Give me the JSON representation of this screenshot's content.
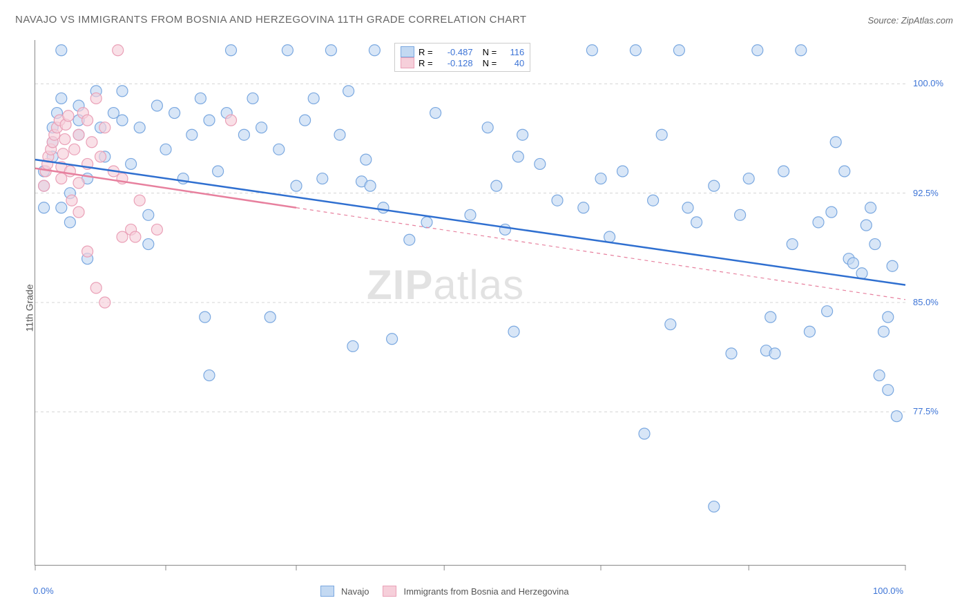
{
  "title": "NAVAJO VS IMMIGRANTS FROM BOSNIA AND HERZEGOVINA 11TH GRADE CORRELATION CHART",
  "source_prefix": "Source: ",
  "source": "ZipAtlas.com",
  "ylabel": "11th Grade",
  "watermark_a": "ZIP",
  "watermark_b": "atlas",
  "chart": {
    "type": "scatter",
    "xlim": [
      0,
      100
    ],
    "ylim": [
      67,
      103
    ],
    "xticks": [
      0,
      15,
      30,
      47,
      65,
      82,
      100
    ],
    "xtick_labels": [
      "0.0%",
      "",
      "",
      "",
      "",
      "",
      "100.0%"
    ],
    "yticks": [
      77.5,
      85.0,
      92.5,
      100.0
    ],
    "ytick_labels": [
      "77.5%",
      "85.0%",
      "92.5%",
      "100.0%"
    ],
    "grid_color": "#d4d4d4",
    "grid_dash": "4,4",
    "background_color": "#ffffff",
    "marker_radius": 8,
    "marker_stroke_width": 1.2
  },
  "series": [
    {
      "name": "Navajo",
      "fill": "#c3d9f2",
      "stroke": "#7aa8e0",
      "line_color": "#2f6fd0",
      "R": "-0.487",
      "N": "116",
      "reg": {
        "x1": 0,
        "y1": 94.8,
        "x2": 100,
        "y2": 86.2,
        "solid_until_x": 100
      },
      "points": [
        [
          1,
          91.5
        ],
        [
          1,
          93.0
        ],
        [
          1,
          94.0
        ],
        [
          2,
          95.0
        ],
        [
          2,
          96.0
        ],
        [
          2,
          97.0
        ],
        [
          2.5,
          98.0
        ],
        [
          3,
          99.0
        ],
        [
          3,
          102.3
        ],
        [
          3,
          91.5
        ],
        [
          4,
          90.5
        ],
        [
          4,
          92.5
        ],
        [
          5,
          96.5
        ],
        [
          5,
          97.5
        ],
        [
          5,
          98.5
        ],
        [
          6,
          93.5
        ],
        [
          6,
          88.0
        ],
        [
          7,
          99.5
        ],
        [
          7.5,
          97.0
        ],
        [
          8,
          95.0
        ],
        [
          9,
          98.0
        ],
        [
          10,
          97.5
        ],
        [
          10,
          99.5
        ],
        [
          11,
          94.5
        ],
        [
          12,
          97.0
        ],
        [
          13,
          89.0
        ],
        [
          13,
          91.0
        ],
        [
          14,
          98.5
        ],
        [
          15,
          95.5
        ],
        [
          16,
          98.0
        ],
        [
          17,
          93.5
        ],
        [
          18,
          96.5
        ],
        [
          19,
          99.0
        ],
        [
          19.5,
          84.0
        ],
        [
          20,
          97.5
        ],
        [
          20,
          80.0
        ],
        [
          21,
          94.0
        ],
        [
          22,
          98.0
        ],
        [
          22.5,
          102.3
        ],
        [
          24,
          96.5
        ],
        [
          25,
          99.0
        ],
        [
          26,
          97.0
        ],
        [
          27,
          84.0
        ],
        [
          28,
          95.5
        ],
        [
          29,
          102.3
        ],
        [
          30,
          93.0
        ],
        [
          31,
          97.5
        ],
        [
          32,
          99.0
        ],
        [
          33,
          93.5
        ],
        [
          34,
          102.3
        ],
        [
          35,
          96.5
        ],
        [
          36,
          99.5
        ],
        [
          36.5,
          82.0
        ],
        [
          37.5,
          93.3
        ],
        [
          38,
          94.8
        ],
        [
          38.5,
          93.0
        ],
        [
          39,
          102.3
        ],
        [
          40,
          91.5
        ],
        [
          41,
          82.5
        ],
        [
          43,
          89.3
        ],
        [
          45,
          90.5
        ],
        [
          46,
          98.0
        ],
        [
          50,
          91.0
        ],
        [
          51,
          102.3
        ],
        [
          52,
          97.0
        ],
        [
          53,
          93.0
        ],
        [
          54,
          90.0
        ],
        [
          55,
          83.0
        ],
        [
          55,
          102.3
        ],
        [
          56,
          96.5
        ],
        [
          55.5,
          95.0
        ],
        [
          58,
          94.5
        ],
        [
          60,
          92.0
        ],
        [
          63,
          91.5
        ],
        [
          64,
          102.3
        ],
        [
          65,
          93.5
        ],
        [
          66,
          89.5
        ],
        [
          67.5,
          94.0
        ],
        [
          69,
          102.3
        ],
        [
          70,
          76.0
        ],
        [
          71,
          92.0
        ],
        [
          72,
          96.5
        ],
        [
          73,
          83.5
        ],
        [
          74,
          102.3
        ],
        [
          75,
          91.5
        ],
        [
          76,
          90.5
        ],
        [
          78,
          93.0
        ],
        [
          78,
          71.0
        ],
        [
          80,
          81.5
        ],
        [
          81,
          91.0
        ],
        [
          82,
          93.5
        ],
        [
          83,
          102.3
        ],
        [
          84,
          81.7
        ],
        [
          84.5,
          84.0
        ],
        [
          85,
          81.5
        ],
        [
          86,
          94.0
        ],
        [
          87,
          89.0
        ],
        [
          88,
          102.3
        ],
        [
          89,
          83.0
        ],
        [
          90,
          90.5
        ],
        [
          91,
          84.4
        ],
        [
          91.5,
          91.2
        ],
        [
          92,
          96.0
        ],
        [
          93,
          94.0
        ],
        [
          93.5,
          88.0
        ],
        [
          94,
          87.7
        ],
        [
          95,
          87.0
        ],
        [
          95.5,
          90.3
        ],
        [
          96,
          91.5
        ],
        [
          96.5,
          89.0
        ],
        [
          97,
          80.0
        ],
        [
          97.5,
          83.0
        ],
        [
          98,
          84.0
        ],
        [
          98,
          79.0
        ],
        [
          98.5,
          87.5
        ],
        [
          99,
          77.2
        ]
      ]
    },
    {
      "name": "Immigrants from Bosnia and Herzegovina",
      "fill": "#f6cfda",
      "stroke": "#eaa0b7",
      "line_color": "#e7809e",
      "R": "-0.128",
      "N": "40",
      "reg": {
        "x1": 0,
        "y1": 94.2,
        "x2": 100,
        "y2": 85.2,
        "solid_until_x": 30
      },
      "points": [
        [
          1,
          93.0
        ],
        [
          1.2,
          94.0
        ],
        [
          1.4,
          94.5
        ],
        [
          1.5,
          95.0
        ],
        [
          1.8,
          95.5
        ],
        [
          2,
          96.0
        ],
        [
          2.2,
          96.5
        ],
        [
          2.5,
          97.0
        ],
        [
          2.8,
          97.5
        ],
        [
          3,
          93.5
        ],
        [
          3,
          94.3
        ],
        [
          3.2,
          95.2
        ],
        [
          3.4,
          96.2
        ],
        [
          3.5,
          97.2
        ],
        [
          3.8,
          97.8
        ],
        [
          4,
          94.0
        ],
        [
          4.5,
          95.5
        ],
        [
          5,
          96.5
        ],
        [
          5.5,
          98.0
        ],
        [
          5,
          93.2
        ],
        [
          6,
          97.5
        ],
        [
          6,
          94.5
        ],
        [
          6.5,
          96.0
        ],
        [
          7,
          99.0
        ],
        [
          7.5,
          95.0
        ],
        [
          8,
          97.0
        ],
        [
          9,
          94.0
        ],
        [
          9.5,
          102.3
        ],
        [
          10,
          93.5
        ],
        [
          11,
          90.0
        ],
        [
          5,
          91.2
        ],
        [
          4.2,
          92.0
        ],
        [
          8,
          85.0
        ],
        [
          6,
          88.5
        ],
        [
          7,
          86.0
        ],
        [
          10,
          89.5
        ],
        [
          11.5,
          89.5
        ],
        [
          12,
          92.0
        ],
        [
          14,
          90.0
        ],
        [
          22.5,
          97.5
        ]
      ]
    }
  ],
  "legend": {
    "R_label": "R =",
    "N_label": "N ="
  },
  "bottom_legend": {
    "items": [
      "Navajo",
      "Immigrants from Bosnia and Herzegovina"
    ]
  }
}
